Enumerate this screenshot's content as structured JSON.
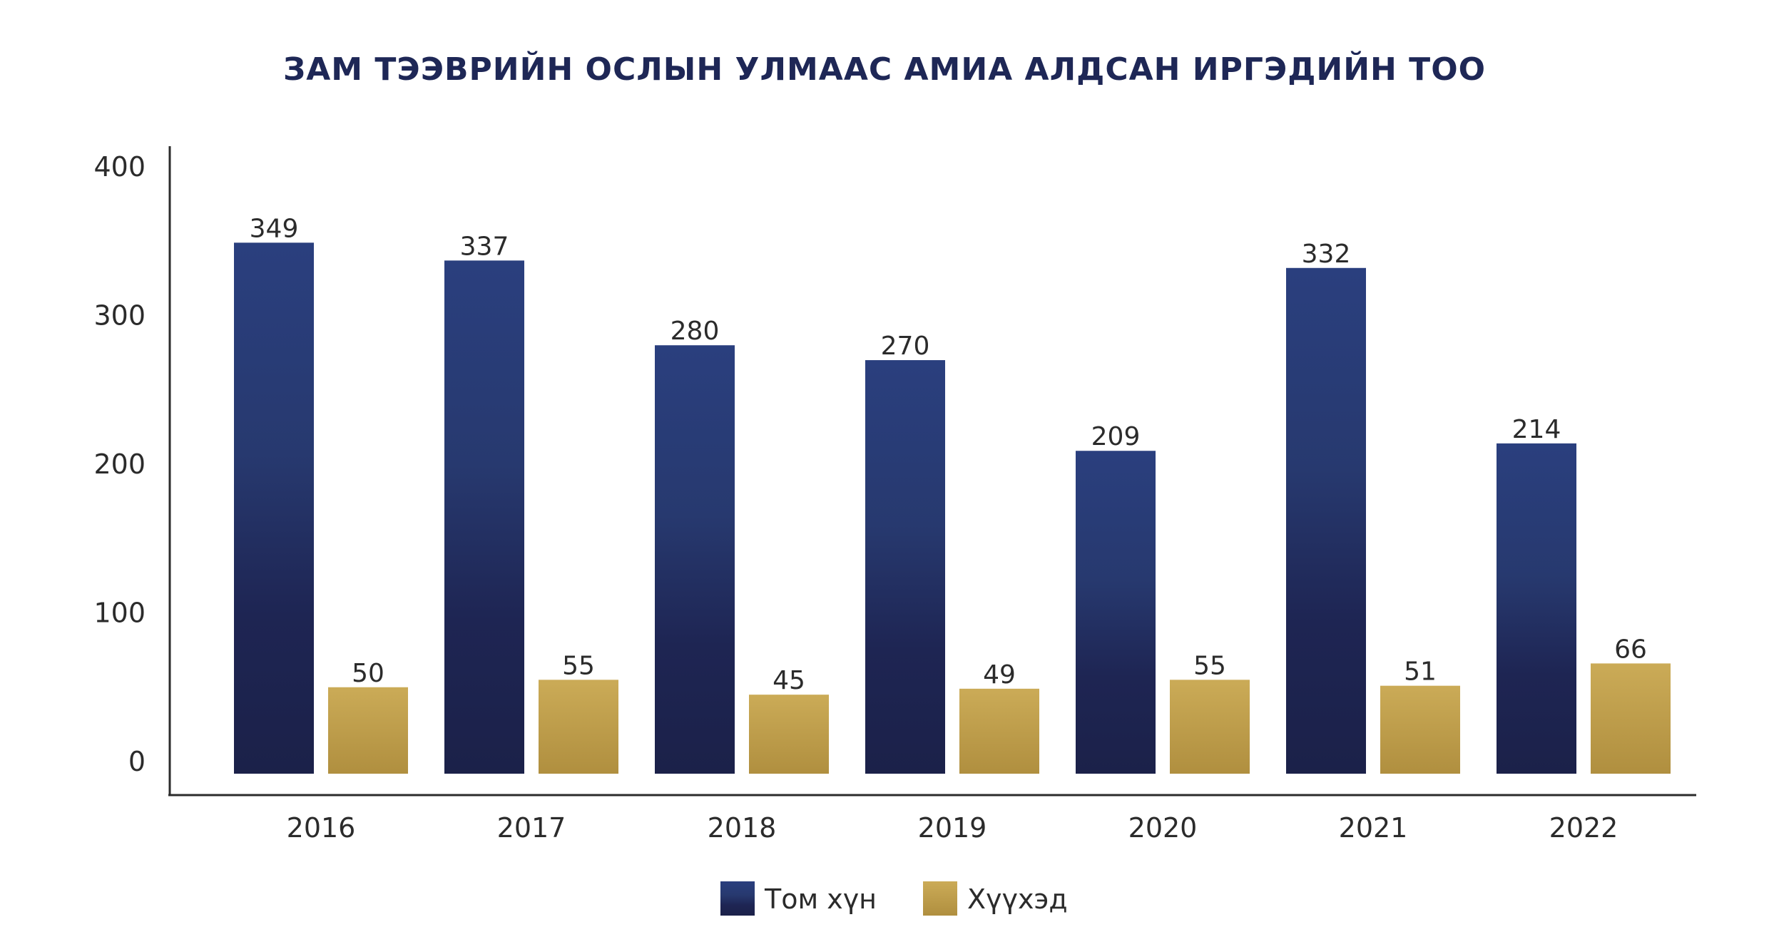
{
  "chart_data": {
    "type": "bar",
    "title": "ЗАМ ТЭЭВРИЙН ОСЛЫН УЛМААС АМИА АЛДСАН ИРГЭДИЙН ТОО",
    "categories": [
      "2016",
      "2017",
      "2018",
      "2019",
      "2020",
      "2021",
      "2022"
    ],
    "series": [
      {
        "name": "Том хүн",
        "values": [
          349,
          337,
          280,
          270,
          209,
          332,
          214
        ],
        "color_top": "#2a3f7e",
        "color_bottom": "#1b2149"
      },
      {
        "name": "Хүүхэд",
        "values": [
          50,
          55,
          45,
          49,
          55,
          51,
          66
        ],
        "color_top": "#cbab57",
        "color_bottom": "#b08f3f"
      }
    ],
    "ylim": [
      0,
      400
    ],
    "yticks": [
      0,
      100,
      200,
      300,
      400
    ],
    "xlabel": "",
    "ylabel": "",
    "grid": false,
    "legend": "bottom-center",
    "data_labels": true
  }
}
